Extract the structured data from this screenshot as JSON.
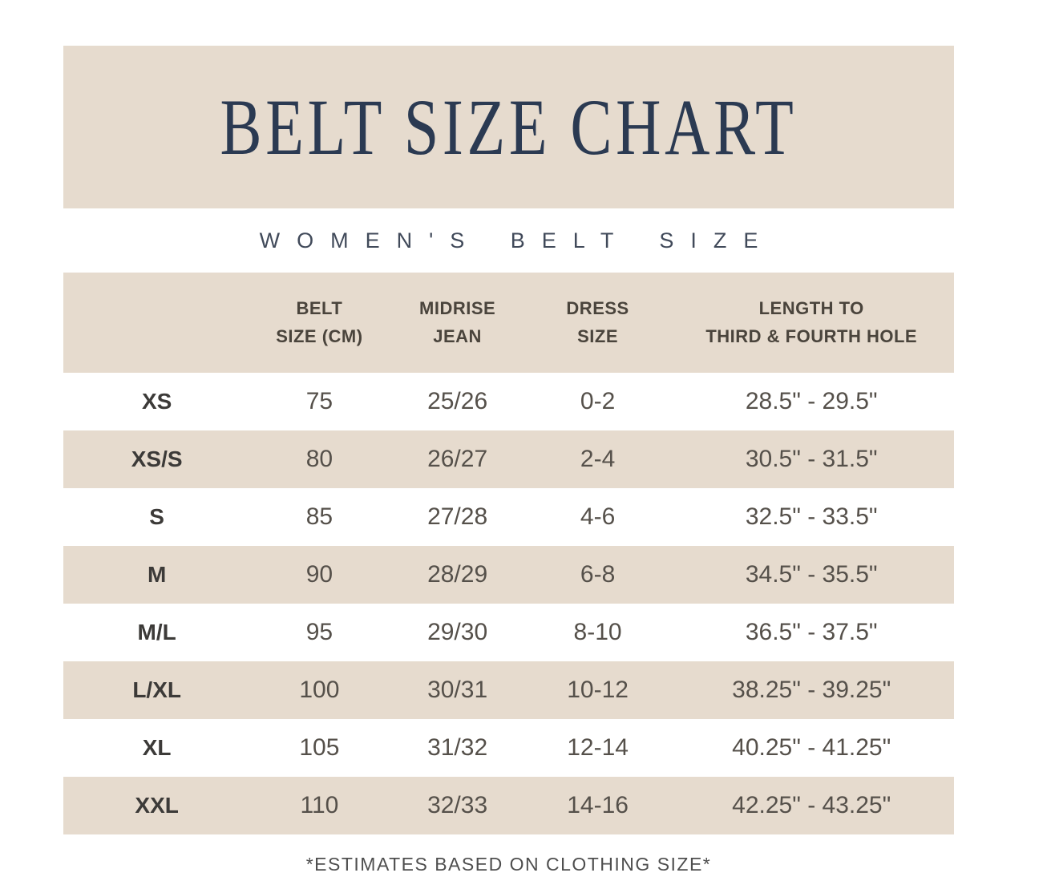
{
  "title": "BELT SIZE CHART",
  "subtitle": "WOMEN'S BELT SIZE",
  "footnote": "*ESTIMATES BASED ON CLOTHING SIZE*",
  "colors": {
    "band_beige": "#e6dbce",
    "title_navy": "#2b3a52",
    "subtitle_slate": "#414a5a",
    "header_text": "#4a443c",
    "cell_text": "#55504a",
    "background": "#ffffff"
  },
  "chart_data": {
    "type": "table",
    "title": "BELT SIZE CHART",
    "subtitle": "WOMEN'S BELT SIZE",
    "footnote": "*ESTIMATES BASED ON CLOTHING SIZE*",
    "layout": {
      "row_shading": "alternating white and beige",
      "header_shaded": true
    },
    "headers": [
      {
        "line1": "",
        "line2": ""
      },
      {
        "line1": "BELT",
        "line2": "SIZE (CM)"
      },
      {
        "line1": "MIDRISE",
        "line2": "JEAN"
      },
      {
        "line1": "DRESS",
        "line2": "SIZE"
      },
      {
        "line1": "LENGTH TO",
        "line2": "THIRD & FOURTH HOLE"
      }
    ],
    "rows": [
      {
        "size": "XS",
        "belt_cm": "75",
        "midrise_jean": "25/26",
        "dress_size": "0-2",
        "length_to_holes": "28.5\" - 29.5\""
      },
      {
        "size": "XS/S",
        "belt_cm": "80",
        "midrise_jean": "26/27",
        "dress_size": "2-4",
        "length_to_holes": "30.5\" - 31.5\""
      },
      {
        "size": "S",
        "belt_cm": "85",
        "midrise_jean": "27/28",
        "dress_size": "4-6",
        "length_to_holes": "32.5\" - 33.5\""
      },
      {
        "size": "M",
        "belt_cm": "90",
        "midrise_jean": "28/29",
        "dress_size": "6-8",
        "length_to_holes": "34.5\" - 35.5\""
      },
      {
        "size": "M/L",
        "belt_cm": "95",
        "midrise_jean": "29/30",
        "dress_size": "8-10",
        "length_to_holes": "36.5\" - 37.5\""
      },
      {
        "size": "L/XL",
        "belt_cm": "100",
        "midrise_jean": "30/31",
        "dress_size": "10-12",
        "length_to_holes": "38.25\" - 39.25\""
      },
      {
        "size": "XL",
        "belt_cm": "105",
        "midrise_jean": "31/32",
        "dress_size": "12-14",
        "length_to_holes": "40.25\" - 41.25\""
      },
      {
        "size": "XXL",
        "belt_cm": "110",
        "midrise_jean": "32/33",
        "dress_size": "14-16",
        "length_to_holes": "42.25\" - 43.25\""
      }
    ]
  }
}
